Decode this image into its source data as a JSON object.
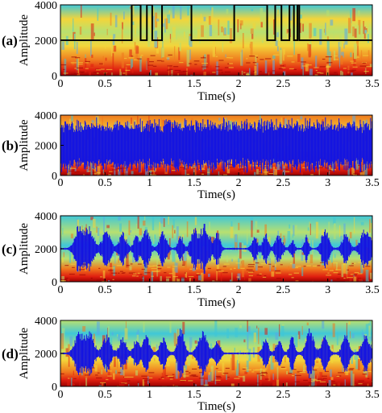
{
  "colors": {
    "deep_red": "#9b0000",
    "red": "#e01f10",
    "orange": "#f07a1e",
    "yellow": "#f3d53a",
    "light_green": "#b8e070",
    "cyan": "#3fc7d8",
    "light_blue": "#5aa8e8",
    "waveform_blue": "#1515e0",
    "outline_black": "#000000"
  },
  "chart_data": [
    {
      "type": "heatmap",
      "panel_label": "(a)",
      "xlabel": "Time(s)",
      "ylabel": "Amplitude",
      "xlim": [
        0,
        3.5
      ],
      "ylim": [
        0,
        4000
      ],
      "x_ticks": [
        0,
        0.5,
        1,
        1.5,
        2,
        2.5,
        3,
        3.5
      ],
      "x_tick_labels": [
        "0",
        "0.5",
        "1",
        "1.5",
        "2",
        "2.5",
        "3",
        "3.5"
      ],
      "y_ticks": [
        0,
        2000,
        4000
      ],
      "y_tick_labels": [
        "0",
        "2000",
        "4000"
      ],
      "waveform": "none",
      "gate_baseline": 2000,
      "gate_high": 4000,
      "gate_segments": [
        [
          0.8,
          0.9
        ],
        [
          0.97,
          1.03
        ],
        [
          1.14,
          1.47
        ],
        [
          1.95,
          2.32
        ],
        [
          2.41,
          2.48
        ],
        [
          2.57,
          2.62
        ],
        [
          2.66,
          2.68
        ]
      ]
    },
    {
      "type": "heatmap",
      "panel_label": "(b)",
      "xlabel": "Time(s)",
      "ylabel": "Amplitude",
      "xlim": [
        0,
        3.5
      ],
      "ylim": [
        0,
        4000
      ],
      "x_ticks": [
        0,
        0.5,
        1,
        1.5,
        2,
        2.5,
        3,
        3.5
      ],
      "x_tick_labels": [
        "0",
        "0.5",
        "1",
        "1.5",
        "2",
        "2.5",
        "3",
        "3.5"
      ],
      "y_ticks": [
        0,
        2000,
        4000
      ],
      "y_tick_labels": [
        "0",
        "2000",
        "4000"
      ],
      "waveform": "noise",
      "waveform_center": 2000,
      "waveform_halfwidth": 1900
    },
    {
      "type": "heatmap",
      "panel_label": "(c)",
      "xlabel": "Time(s)",
      "ylabel": "Amplitude",
      "xlim": [
        0,
        3.5
      ],
      "ylim": [
        0,
        4000
      ],
      "x_ticks": [
        0,
        0.5,
        1,
        1.5,
        2,
        2.5,
        3,
        3.5
      ],
      "x_tick_labels": [
        "0",
        "0.5",
        "1",
        "1.5",
        "2",
        "2.5",
        "3",
        "3.5"
      ],
      "y_ticks": [
        0,
        2000,
        4000
      ],
      "y_tick_labels": [
        "0",
        "2000",
        "4000"
      ],
      "waveform": "speech",
      "waveform_center": 2000,
      "bursts": [
        {
          "t": 0.2,
          "w": 0.06,
          "a": 1300
        },
        {
          "t": 0.32,
          "w": 0.07,
          "a": 1400
        },
        {
          "t": 0.52,
          "w": 0.06,
          "a": 1200
        },
        {
          "t": 0.7,
          "w": 0.05,
          "a": 1000
        },
        {
          "t": 0.85,
          "w": 0.04,
          "a": 800
        },
        {
          "t": 0.96,
          "w": 0.05,
          "a": 1400
        },
        {
          "t": 1.15,
          "w": 0.05,
          "a": 1100
        },
        {
          "t": 1.35,
          "w": 0.04,
          "a": 800
        },
        {
          "t": 1.5,
          "w": 0.05,
          "a": 1200
        },
        {
          "t": 1.62,
          "w": 0.07,
          "a": 1500
        },
        {
          "t": 1.76,
          "w": 0.04,
          "a": 1000
        },
        {
          "t": 2.18,
          "w": 0.04,
          "a": 800
        },
        {
          "t": 2.3,
          "w": 0.04,
          "a": 1000
        },
        {
          "t": 2.45,
          "w": 0.05,
          "a": 900
        },
        {
          "t": 2.6,
          "w": 0.03,
          "a": 600
        },
        {
          "t": 2.76,
          "w": 0.03,
          "a": 800
        },
        {
          "t": 2.97,
          "w": 0.05,
          "a": 1300
        },
        {
          "t": 3.2,
          "w": 0.05,
          "a": 1000
        },
        {
          "t": 3.43,
          "w": 0.07,
          "a": 1400
        }
      ]
    },
    {
      "type": "heatmap",
      "panel_label": "(d)",
      "xlabel": "Time(s)",
      "ylabel": "Amplitude",
      "xlim": [
        0,
        3.5
      ],
      "ylim": [
        0,
        4000
      ],
      "x_ticks": [
        0,
        0.5,
        1,
        1.5,
        2,
        2.5,
        3,
        3.5
      ],
      "x_tick_labels": [
        "0",
        "0.5",
        "1",
        "1.5",
        "2",
        "2.5",
        "3",
        "3.5"
      ],
      "y_ticks": [
        0,
        2000,
        4000
      ],
      "y_tick_labels": [
        "0",
        "2000",
        "4000"
      ],
      "waveform": "speech",
      "waveform_center": 2000,
      "bursts": [
        {
          "t": 0.2,
          "w": 0.06,
          "a": 1300
        },
        {
          "t": 0.32,
          "w": 0.07,
          "a": 1400
        },
        {
          "t": 0.52,
          "w": 0.06,
          "a": 1100
        },
        {
          "t": 0.7,
          "w": 0.05,
          "a": 1000
        },
        {
          "t": 0.85,
          "w": 0.04,
          "a": 900
        },
        {
          "t": 0.96,
          "w": 0.05,
          "a": 1200
        },
        {
          "t": 1.15,
          "w": 0.05,
          "a": 1000
        },
        {
          "t": 1.35,
          "w": 0.05,
          "a": 1500
        },
        {
          "t": 1.6,
          "w": 0.07,
          "a": 1400
        },
        {
          "t": 1.76,
          "w": 0.04,
          "a": 900
        },
        {
          "t": 2.3,
          "w": 0.04,
          "a": 1000
        },
        {
          "t": 2.45,
          "w": 0.04,
          "a": 900
        },
        {
          "t": 2.6,
          "w": 0.04,
          "a": 1000
        },
        {
          "t": 2.8,
          "w": 0.06,
          "a": 1500
        },
        {
          "t": 2.97,
          "w": 0.05,
          "a": 1100
        },
        {
          "t": 3.2,
          "w": 0.05,
          "a": 1200
        },
        {
          "t": 3.43,
          "w": 0.06,
          "a": 1200
        }
      ]
    }
  ]
}
